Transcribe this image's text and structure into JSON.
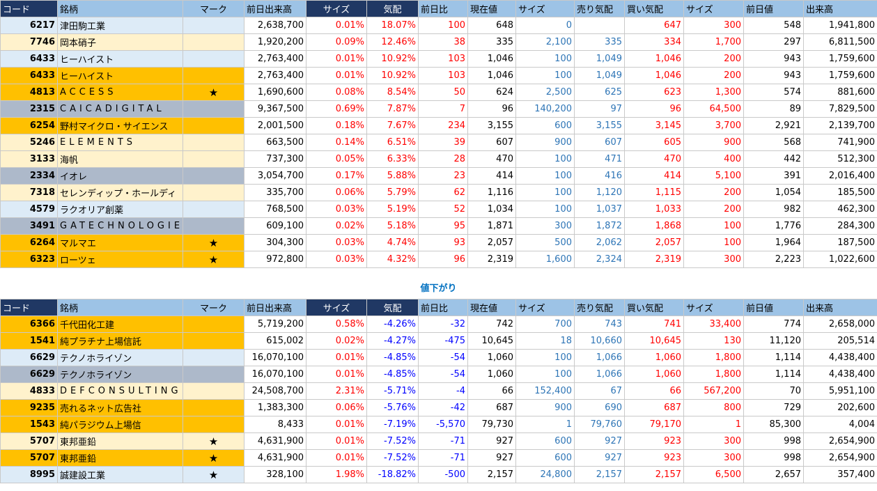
{
  "headers": [
    "コード",
    "銘柄",
    "マーク",
    "前日出来高",
    "サイズ",
    "気配",
    "前日比",
    "現在値",
    "サイズ",
    "売り気配",
    "買い気配",
    "サイズ",
    "前日値",
    "出来高"
  ],
  "section2_label": "値下がり",
  "colors": {
    "header": "#9dc3e6",
    "header_dark": "#203864",
    "light": "#ddebf7",
    "cream": "#fff2cc",
    "orange": "#ffc000",
    "gray": "#adb9ca",
    "up": "#ff0000",
    "size": "#2e75b6",
    "down": "#0000ff"
  },
  "gainers": [
    {
      "code": "6217",
      "name": "津田駒工業",
      "mark": "",
      "prev_volume": "2,638,700",
      "size_pct": "0.01%",
      "quote": "18.07%",
      "change": "100",
      "price": "648",
      "size1": "0",
      "ask": "",
      "bid": "647",
      "size2": "300",
      "prev_price": "548",
      "volume": "1,941,800",
      "row_color": "light"
    },
    {
      "code": "7746",
      "name": "岡本硝子",
      "mark": "",
      "prev_volume": "1,920,200",
      "size_pct": "0.09%",
      "quote": "12.46%",
      "change": "38",
      "price": "335",
      "size1": "2,100",
      "ask": "335",
      "bid": "334",
      "size2": "1,700",
      "prev_price": "297",
      "volume": "6,811,500",
      "row_color": "cream"
    },
    {
      "code": "6433",
      "name": "ヒーハイスト",
      "mark": "",
      "prev_volume": "2,763,400",
      "size_pct": "0.01%",
      "quote": "10.92%",
      "change": "103",
      "price": "1,046",
      "size1": "100",
      "ask": "1,049",
      "bid": "1,046",
      "size2": "200",
      "prev_price": "943",
      "volume": "1,759,600",
      "row_color": "light"
    },
    {
      "code": "6433",
      "name": "ヒーハイスト",
      "mark": "",
      "prev_volume": "2,763,400",
      "size_pct": "0.01%",
      "quote": "10.92%",
      "change": "103",
      "price": "1,046",
      "size1": "100",
      "ask": "1,049",
      "bid": "1,046",
      "size2": "200",
      "prev_price": "943",
      "volume": "1,759,600",
      "row_color": "orange"
    },
    {
      "code": "4813",
      "name": "ACCESS",
      "mark": "★",
      "prev_volume": "1,690,600",
      "size_pct": "0.08%",
      "quote": "8.54%",
      "change": "50",
      "price": "624",
      "size1": "2,500",
      "ask": "625",
      "bid": "623",
      "size2": "1,300",
      "prev_price": "574",
      "volume": "881,600",
      "row_color": "orange",
      "spaced": true
    },
    {
      "code": "2315",
      "name": "CAICADIGITAL",
      "mark": "",
      "prev_volume": "9,367,500",
      "size_pct": "0.69%",
      "quote": "7.87%",
      "change": "7",
      "price": "96",
      "size1": "140,200",
      "ask": "97",
      "bid": "96",
      "size2": "64,500",
      "prev_price": "89",
      "volume": "7,829,500",
      "row_color": "gray",
      "spaced": true
    },
    {
      "code": "6254",
      "name": "野村マイクロ・サイエンス",
      "mark": "",
      "prev_volume": "2,001,500",
      "size_pct": "0.18%",
      "quote": "7.67%",
      "change": "234",
      "price": "3,155",
      "size1": "600",
      "ask": "3,155",
      "bid": "3,145",
      "size2": "3,700",
      "prev_price": "2,921",
      "volume": "2,139,700",
      "row_color": "orange"
    },
    {
      "code": "5246",
      "name": "ELEMENTS",
      "mark": "",
      "prev_volume": "663,500",
      "size_pct": "0.14%",
      "quote": "6.51%",
      "change": "39",
      "price": "607",
      "size1": "900",
      "ask": "607",
      "bid": "605",
      "size2": "900",
      "prev_price": "568",
      "volume": "741,900",
      "row_color": "cream",
      "spaced": true
    },
    {
      "code": "3133",
      "name": "海帆",
      "mark": "",
      "prev_volume": "737,300",
      "size_pct": "0.05%",
      "quote": "6.33%",
      "change": "28",
      "price": "470",
      "size1": "100",
      "ask": "471",
      "bid": "470",
      "size2": "400",
      "prev_price": "442",
      "volume": "512,300",
      "row_color": "cream"
    },
    {
      "code": "2334",
      "name": "イオレ",
      "mark": "",
      "prev_volume": "3,054,700",
      "size_pct": "0.17%",
      "quote": "5.88%",
      "change": "23",
      "price": "414",
      "size1": "100",
      "ask": "416",
      "bid": "414",
      "size2": "5,100",
      "prev_price": "391",
      "volume": "2,016,400",
      "row_color": "gray"
    },
    {
      "code": "7318",
      "name": "セレンディップ・ホールディ",
      "mark": "",
      "prev_volume": "335,700",
      "size_pct": "0.06%",
      "quote": "5.79%",
      "change": "62",
      "price": "1,116",
      "size1": "100",
      "ask": "1,120",
      "bid": "1,115",
      "size2": "200",
      "prev_price": "1,054",
      "volume": "185,500",
      "row_color": "cream"
    },
    {
      "code": "4579",
      "name": "ラクオリア創薬",
      "mark": "",
      "prev_volume": "768,500",
      "size_pct": "0.03%",
      "quote": "5.19%",
      "change": "52",
      "price": "1,034",
      "size1": "100",
      "ask": "1,037",
      "bid": "1,033",
      "size2": "200",
      "prev_price": "982",
      "volume": "462,300",
      "row_color": "light"
    },
    {
      "code": "3491",
      "name": "GATECHNOLOGIES",
      "mark": "",
      "prev_volume": "609,100",
      "size_pct": "0.02%",
      "quote": "5.18%",
      "change": "95",
      "price": "1,871",
      "size1": "300",
      "ask": "1,872",
      "bid": "1,868",
      "size2": "100",
      "prev_price": "1,776",
      "volume": "284,300",
      "row_color": "gray",
      "spaced": true
    },
    {
      "code": "6264",
      "name": "マルマエ",
      "mark": "★",
      "prev_volume": "304,300",
      "size_pct": "0.03%",
      "quote": "4.74%",
      "change": "93",
      "price": "2,057",
      "size1": "500",
      "ask": "2,062",
      "bid": "2,057",
      "size2": "100",
      "prev_price": "1,964",
      "volume": "187,500",
      "row_color": "orange"
    },
    {
      "code": "6323",
      "name": "ローツェ",
      "mark": "★",
      "prev_volume": "972,800",
      "size_pct": "0.03%",
      "quote": "4.32%",
      "change": "96",
      "price": "2,319",
      "size1": "1,600",
      "ask": "2,324",
      "bid": "2,319",
      "size2": "300",
      "prev_price": "2,223",
      "volume": "1,022,600",
      "row_color": "orange"
    }
  ],
  "losers": [
    {
      "code": "6366",
      "name": "千代田化工建",
      "mark": "",
      "prev_volume": "5,719,200",
      "size_pct": "0.58%",
      "quote": "-4.26%",
      "change": "-32",
      "price": "742",
      "size1": "700",
      "ask": "743",
      "bid": "741",
      "size2": "33,400",
      "prev_price": "774",
      "volume": "2,658,000",
      "row_color": "orange"
    },
    {
      "code": "1541",
      "name": "純プラチナ上場信託",
      "mark": "",
      "prev_volume": "615,002",
      "size_pct": "0.02%",
      "quote": "-4.27%",
      "change": "-475",
      "price": "10,645",
      "size1": "18",
      "ask": "10,660",
      "bid": "10,645",
      "size2": "130",
      "prev_price": "11,120",
      "volume": "205,514",
      "row_color": "orange"
    },
    {
      "code": "6629",
      "name": "テクノホライゾン",
      "mark": "",
      "prev_volume": "16,070,100",
      "size_pct": "0.01%",
      "quote": "-4.85%",
      "change": "-54",
      "price": "1,060",
      "size1": "100",
      "ask": "1,066",
      "bid": "1,060",
      "size2": "1,800",
      "prev_price": "1,114",
      "volume": "4,438,400",
      "row_color": "light"
    },
    {
      "code": "6629",
      "name": "テクノホライゾン",
      "mark": "",
      "prev_volume": "16,070,100",
      "size_pct": "0.01%",
      "quote": "-4.85%",
      "change": "-54",
      "price": "1,060",
      "size1": "100",
      "ask": "1,066",
      "bid": "1,060",
      "size2": "1,800",
      "prev_price": "1,114",
      "volume": "4,438,400",
      "row_color": "gray"
    },
    {
      "code": "4833",
      "name": "DEFCONSULTING",
      "mark": "",
      "prev_volume": "24,508,700",
      "size_pct": "2.31%",
      "quote": "-5.71%",
      "change": "-4",
      "price": "66",
      "size1": "152,400",
      "ask": "67",
      "bid": "66",
      "size2": "567,200",
      "prev_price": "70",
      "volume": "5,951,100",
      "row_color": "cream",
      "spaced": true
    },
    {
      "code": "9235",
      "name": "売れるネット広告社",
      "mark": "",
      "prev_volume": "1,383,300",
      "size_pct": "0.06%",
      "quote": "-5.76%",
      "change": "-42",
      "price": "687",
      "size1": "900",
      "ask": "690",
      "bid": "687",
      "size2": "800",
      "prev_price": "729",
      "volume": "202,600",
      "row_color": "orange"
    },
    {
      "code": "1543",
      "name": "純パラジウム上場信",
      "mark": "",
      "prev_volume": "8,433",
      "size_pct": "0.01%",
      "quote": "-7.19%",
      "change": "-5,570",
      "price": "79,730",
      "size1": "1",
      "ask": "79,760",
      "bid": "79,170",
      "size2": "1",
      "prev_price": "85,300",
      "volume": "4,004",
      "row_color": "orange"
    },
    {
      "code": "5707",
      "name": "東邦亜鉛",
      "mark": "★",
      "prev_volume": "4,631,900",
      "size_pct": "0.01%",
      "quote": "-7.52%",
      "change": "-71",
      "price": "927",
      "size1": "600",
      "ask": "927",
      "bid": "923",
      "size2": "300",
      "prev_price": "998",
      "volume": "2,654,900",
      "row_color": "cream"
    },
    {
      "code": "5707",
      "name": "東邦亜鉛",
      "mark": "★",
      "prev_volume": "4,631,900",
      "size_pct": "0.01%",
      "quote": "-7.52%",
      "change": "-71",
      "price": "927",
      "size1": "600",
      "ask": "927",
      "bid": "923",
      "size2": "300",
      "prev_price": "998",
      "volume": "2,654,900",
      "row_color": "orange"
    },
    {
      "code": "8995",
      "name": "誠建設工業",
      "mark": "★",
      "prev_volume": "328,100",
      "size_pct": "1.98%",
      "quote": "-18.82%",
      "change": "-500",
      "price": "2,157",
      "size1": "24,800",
      "ask": "2,157",
      "bid": "2,157",
      "size2": "6,500",
      "prev_price": "2,657",
      "volume": "357,400",
      "row_color": "light"
    }
  ]
}
